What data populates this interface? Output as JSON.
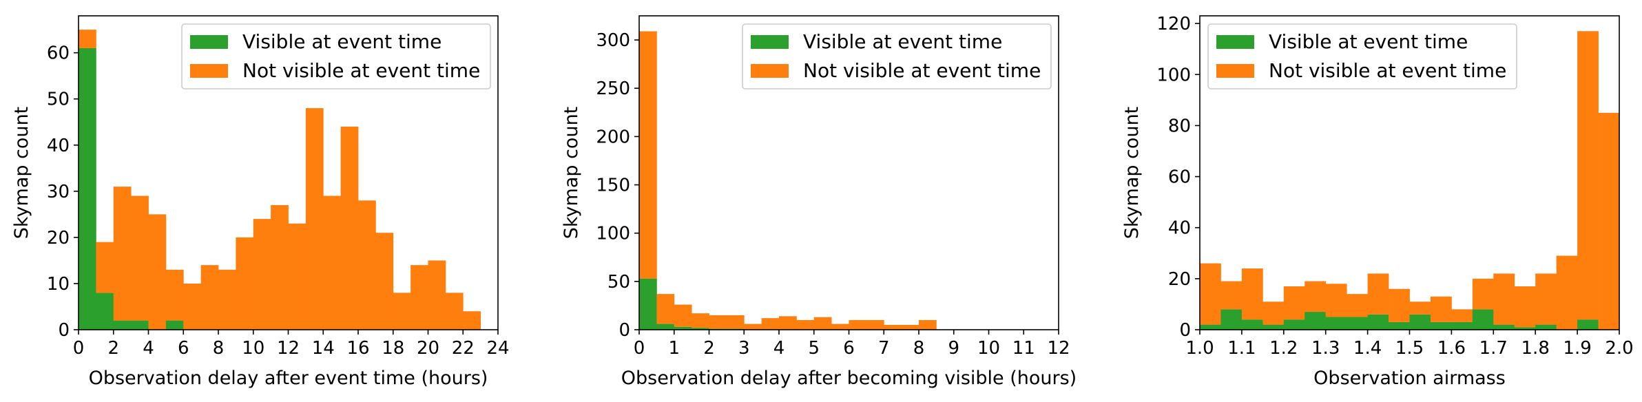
{
  "colors": {
    "visible": "#2ca02c",
    "not_visible": "#ff7f0e",
    "legend_border": "#cccccc"
  },
  "chart_data": [
    {
      "type": "bar",
      "stacked": true,
      "title": "",
      "xlabel": "Observation delay after event time (hours)",
      "ylabel": "Skymap count",
      "xlim": [
        0,
        24
      ],
      "ylim": [
        0,
        68
      ],
      "xticks": [
        "0",
        "2",
        "4",
        "6",
        "8",
        "10",
        "12",
        "14",
        "16",
        "18",
        "20",
        "22",
        "24"
      ],
      "yticks": [
        "0",
        "10",
        "20",
        "30",
        "40",
        "50",
        "60"
      ],
      "bin_edges": [
        0,
        1,
        2,
        3,
        4,
        5,
        6,
        7,
        8,
        9,
        10,
        11,
        12,
        13,
        14,
        15,
        16,
        17,
        18,
        19,
        20,
        21,
        22,
        23
      ],
      "legend": "top-right",
      "grid": false,
      "series": [
        {
          "name": "Visible at event time",
          "values": [
            61,
            8,
            2,
            2,
            0,
            2,
            0,
            0,
            0,
            0,
            0,
            0,
            0,
            0,
            0,
            0,
            0,
            0,
            0,
            0,
            0,
            0,
            0
          ]
        },
        {
          "name": "Not visible at event time",
          "values": [
            4,
            11,
            29,
            27,
            25,
            11,
            10,
            14,
            13,
            20,
            24,
            27,
            23,
            48,
            29,
            44,
            28,
            21,
            8,
            14,
            15,
            8,
            4
          ]
        }
      ]
    },
    {
      "type": "bar",
      "stacked": true,
      "title": "",
      "xlabel": "Observation delay after becoming visible (hours)",
      "ylabel": "Skymap count",
      "xlim": [
        0,
        12
      ],
      "ylim": [
        0,
        325
      ],
      "xticks": [
        "0",
        "1",
        "2",
        "3",
        "4",
        "5",
        "6",
        "7",
        "8",
        "9",
        "10",
        "11",
        "12"
      ],
      "yticks": [
        "0",
        "50",
        "100",
        "150",
        "200",
        "250",
        "300"
      ],
      "bin_edges": [
        0,
        0.5,
        1,
        1.5,
        2,
        2.5,
        3,
        3.5,
        4,
        4.5,
        5,
        5.5,
        6,
        6.5,
        7,
        7.5,
        8,
        8.5,
        9
      ],
      "legend": "top-right",
      "grid": false,
      "series": [
        {
          "name": "Visible at event time",
          "values": [
            53,
            6,
            3,
            2,
            1,
            1,
            0,
            0,
            0,
            0,
            0,
            0,
            0,
            0,
            0,
            0,
            0,
            0
          ]
        },
        {
          "name": "Not visible at event time",
          "values": [
            256,
            31,
            23,
            15,
            14,
            14,
            6,
            12,
            14,
            10,
            13,
            6,
            10,
            10,
            5,
            5,
            10,
            0
          ]
        }
      ]
    },
    {
      "type": "bar",
      "stacked": true,
      "title": "",
      "xlabel": "Observation airmass",
      "ylabel": "Skymap count",
      "xlim": [
        1.0,
        2.0
      ],
      "ylim": [
        0,
        123
      ],
      "xticks": [
        "1.0",
        "1.1",
        "1.2",
        "1.3",
        "1.4",
        "1.5",
        "1.6",
        "1.7",
        "1.8",
        "1.9",
        "2.0"
      ],
      "yticks": [
        "0",
        "20",
        "40",
        "60",
        "80",
        "100",
        "120"
      ],
      "bin_edges": [
        1.0,
        1.05,
        1.1,
        1.15,
        1.2,
        1.25,
        1.3,
        1.35,
        1.4,
        1.45,
        1.5,
        1.55,
        1.6,
        1.65,
        1.7,
        1.75,
        1.8,
        1.85,
        1.9,
        1.95
      ],
      "legend": "top-left",
      "grid": false,
      "series": [
        {
          "name": "Visible at event time",
          "values": [
            2,
            8,
            4,
            2,
            4,
            7,
            5,
            5,
            6,
            3,
            6,
            3,
            3,
            8,
            2,
            1,
            2,
            0,
            4,
            0
          ]
        },
        {
          "name": "Not visible at event time",
          "values": [
            24,
            11,
            20,
            9,
            13,
            12,
            13,
            9,
            16,
            13,
            5,
            10,
            5,
            12,
            20,
            16,
            20,
            29,
            113,
            85
          ]
        }
      ]
    }
  ]
}
